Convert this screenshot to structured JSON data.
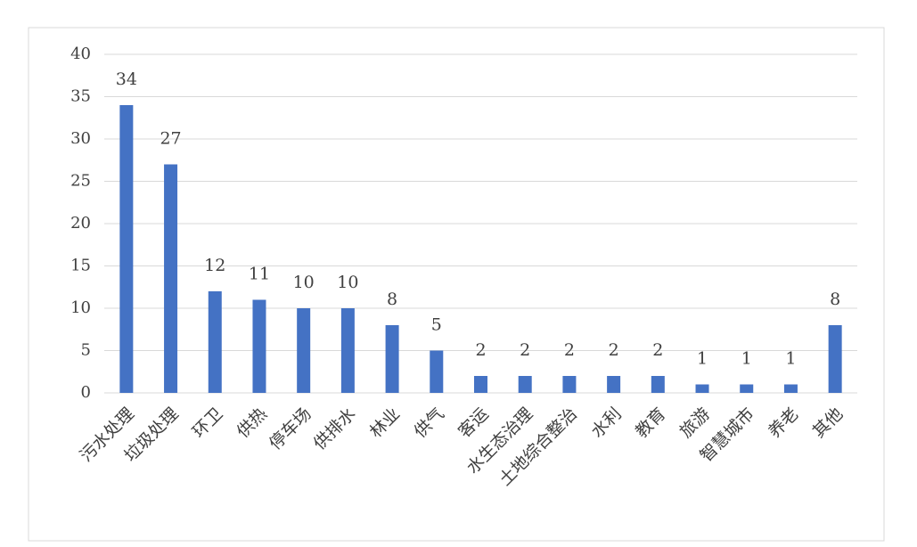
{
  "chart_data": {
    "type": "bar",
    "categories": [
      "污水处理",
      "垃圾处理",
      "环卫",
      "供热",
      "停车场",
      "供排水",
      "林业",
      "供气",
      "客运",
      "水生态治理",
      "土地综合整治",
      "水利",
      "教育",
      "旅游",
      "智慧城市",
      "养老",
      "其他"
    ],
    "values": [
      34,
      27,
      12,
      11,
      10,
      10,
      8,
      5,
      2,
      2,
      2,
      2,
      2,
      1,
      1,
      1,
      8
    ],
    "color": "#4472c4",
    "ylim": [
      0,
      40
    ],
    "yticks": [
      0,
      5,
      10,
      15,
      20,
      25,
      30,
      35,
      40
    ],
    "grid": true
  }
}
